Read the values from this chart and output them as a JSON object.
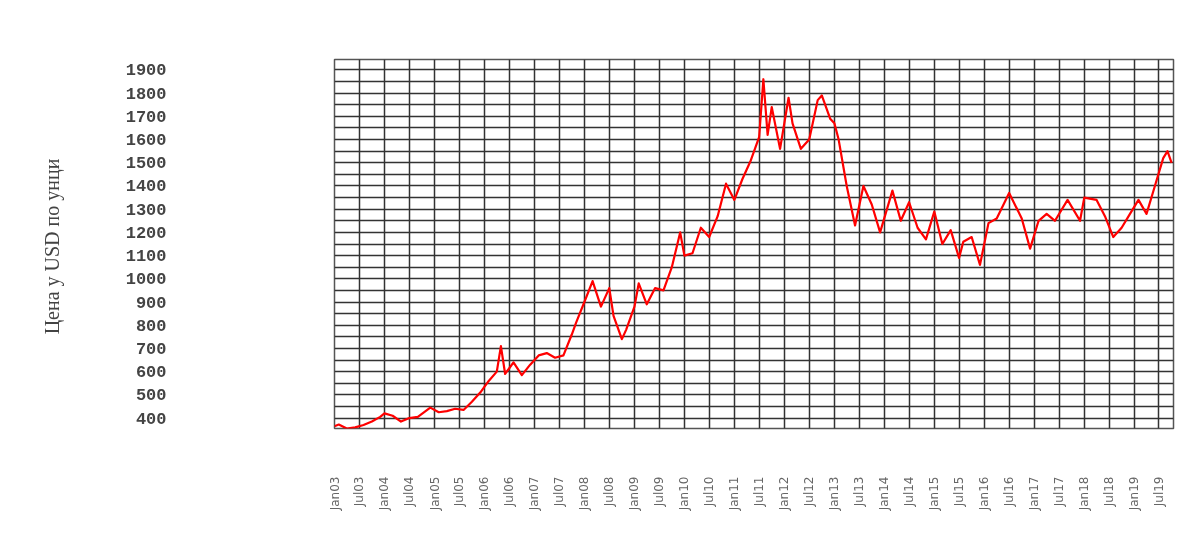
{
  "chart_data": {
    "type": "line",
    "ylabel": "Цена у USD  по унци",
    "x": [
      "2003-01",
      "2003-02",
      "2003-04",
      "2003-06",
      "2003-08",
      "2003-10",
      "2003-12",
      "2004-01",
      "2004-03",
      "2004-05",
      "2004-07",
      "2004-09",
      "2004-12",
      "2005-02",
      "2005-04",
      "2005-06",
      "2005-08",
      "2005-10",
      "2005-12",
      "2006-02",
      "2006-04",
      "2006-05",
      "2006-06",
      "2006-08",
      "2006-10",
      "2006-12",
      "2007-02",
      "2007-04",
      "2007-06",
      "2007-08",
      "2007-10",
      "2007-11",
      "2008-01",
      "2008-03",
      "2008-05",
      "2008-07",
      "2008-08",
      "2008-10",
      "2008-11",
      "2009-01",
      "2009-02",
      "2009-04",
      "2009-06",
      "2009-08",
      "2009-10",
      "2009-12",
      "2010-01",
      "2010-03",
      "2010-05",
      "2010-07",
      "2010-09",
      "2010-11",
      "2011-01",
      "2011-03",
      "2011-05",
      "2011-07",
      "2011-08",
      "2011-09",
      "2011-10",
      "2011-12",
      "2012-02",
      "2012-03",
      "2012-05",
      "2012-07",
      "2012-09",
      "2012-10",
      "2012-12",
      "2013-01",
      "2013-02",
      "2013-04",
      "2013-06",
      "2013-08",
      "2013-10",
      "2013-12",
      "2014-03",
      "2014-05",
      "2014-07",
      "2014-09",
      "2014-11",
      "2015-01",
      "2015-03",
      "2015-05",
      "2015-07",
      "2015-08",
      "2015-10",
      "2015-12",
      "2016-02",
      "2016-04",
      "2016-07",
      "2016-10",
      "2016-12",
      "2017-02",
      "2017-04",
      "2017-06",
      "2017-09",
      "2017-12",
      "2018-01",
      "2018-04",
      "2018-06",
      "2018-08",
      "2018-10",
      "2018-12",
      "2019-02",
      "2019-04",
      "2019-06",
      "2019-08",
      "2019-09",
      "2019-10"
    ],
    "series": [
      {
        "color": "#ff0000",
        "values": [
          365,
          372,
          355,
          360,
          370,
          385,
          405,
          420,
          410,
          385,
          400,
          405,
          445,
          425,
          430,
          440,
          435,
          470,
          510,
          560,
          600,
          710,
          590,
          640,
          585,
          630,
          670,
          680,
          660,
          670,
          760,
          810,
          900,
          990,
          880,
          960,
          840,
          740,
          780,
          880,
          980,
          890,
          960,
          950,
          1050,
          1200,
          1100,
          1110,
          1220,
          1180,
          1270,
          1410,
          1340,
          1430,
          1510,
          1610,
          1860,
          1620,
          1740,
          1560,
          1780,
          1670,
          1560,
          1600,
          1770,
          1790,
          1690,
          1670,
          1600,
          1400,
          1230,
          1400,
          1320,
          1200,
          1380,
          1250,
          1330,
          1220,
          1170,
          1290,
          1150,
          1210,
          1090,
          1160,
          1180,
          1060,
          1240,
          1260,
          1370,
          1260,
          1130,
          1250,
          1280,
          1250,
          1340,
          1250,
          1350,
          1340,
          1270,
          1180,
          1220,
          1280,
          1340,
          1280,
          1400,
          1520,
          1550,
          1500
        ]
      }
    ],
    "xlim": [
      "2003-01-01",
      "2019-10-15"
    ],
    "xticks": [
      {
        "value": "2003-01",
        "label": "Jan03"
      },
      {
        "value": "2003-07",
        "label": "Jul03"
      },
      {
        "value": "2004-01",
        "label": "Jan04"
      },
      {
        "value": "2004-07",
        "label": "Jul04"
      },
      {
        "value": "2005-01",
        "label": "Jan05"
      },
      {
        "value": "2005-07",
        "label": "Jul05"
      },
      {
        "value": "2006-01",
        "label": "Jan06"
      },
      {
        "value": "2006-07",
        "label": "Jul06"
      },
      {
        "value": "2007-01",
        "label": "Jan07"
      },
      {
        "value": "2007-07",
        "label": "Jul07"
      },
      {
        "value": "2008-01",
        "label": "Jan08"
      },
      {
        "value": "2008-07",
        "label": "Jul08"
      },
      {
        "value": "2009-01",
        "label": "Jan09"
      },
      {
        "value": "2009-07",
        "label": "Jul09"
      },
      {
        "value": "2010-01",
        "label": "Jan10"
      },
      {
        "value": "2010-07",
        "label": "Jul10"
      },
      {
        "value": "2011-01",
        "label": "Jan11"
      },
      {
        "value": "2011-07",
        "label": "Jul11"
      },
      {
        "value": "2012-01",
        "label": "Jan12"
      },
      {
        "value": "2012-07",
        "label": "Jul12"
      },
      {
        "value": "2013-01",
        "label": "Jan13"
      },
      {
        "value": "2013-07",
        "label": "Jul13"
      },
      {
        "value": "2014-01",
        "label": "Jan14"
      },
      {
        "value": "2014-07",
        "label": "Jul14"
      },
      {
        "value": "2015-01",
        "label": "Jan15"
      },
      {
        "value": "2015-07",
        "label": "Jul15"
      },
      {
        "value": "2016-01",
        "label": "Jan16"
      },
      {
        "value": "2016-07",
        "label": "Jul16"
      },
      {
        "value": "2017-01",
        "label": "Jan17"
      },
      {
        "value": "2017-07",
        "label": "Jul17"
      },
      {
        "value": "2018-01",
        "label": "Jan18"
      },
      {
        "value": "2018-07",
        "label": "Jul18"
      },
      {
        "value": "2019-01",
        "label": "Jan19"
      },
      {
        "value": "2019-07",
        "label": "Jul19"
      }
    ],
    "ylim": [
      355,
      1945
    ],
    "yticks": [
      400,
      {
        "value": 450,
        "label": null
      },
      500,
      {
        "value": 550,
        "label": null
      },
      600,
      {
        "value": 650,
        "label": null
      },
      700,
      {
        "value": 750,
        "label": null
      },
      800,
      {
        "value": 850,
        "label": null
      },
      900,
      {
        "value": 950,
        "label": null
      },
      1000,
      {
        "value": 1050,
        "label": null
      },
      1100,
      {
        "value": 1150,
        "label": null
      },
      1200,
      {
        "value": 1250,
        "label": null
      },
      1300,
      {
        "value": 1350,
        "label": null
      },
      1400,
      {
        "value": 1450,
        "label": null
      },
      1500,
      {
        "value": 1550,
        "label": null
      },
      1600,
      {
        "value": 1650,
        "label": null
      },
      1700,
      {
        "value": 1750,
        "label": null
      },
      1800,
      {
        "value": 1850,
        "label": null
      },
      1900
    ],
    "grid": true,
    "marker": "none",
    "line_style": "solid"
  }
}
